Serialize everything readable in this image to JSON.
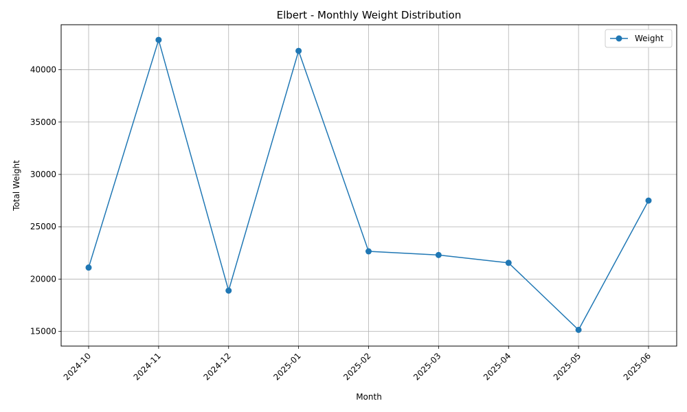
{
  "chart_data": {
    "type": "line",
    "title": "Elbert - Monthly Weight Distribution",
    "xlabel": "Month",
    "ylabel": "Total Weight",
    "categories": [
      "2024-10",
      "2024-11",
      "2024-12",
      "2025-01",
      "2025-02",
      "2025-03",
      "2025-04",
      "2025-05",
      "2025-06"
    ],
    "series": [
      {
        "name": "Weight",
        "values": [
          21100,
          42850,
          18900,
          41800,
          22650,
          22300,
          21550,
          15150,
          27500
        ],
        "color": "#1f77b4",
        "marker": "circle"
      }
    ],
    "yticks": [
      15000,
      20000,
      25000,
      30000,
      35000,
      40000
    ],
    "ylim": [
      13600,
      44300
    ],
    "grid": true,
    "legend_position": "top-right",
    "x_tick_rotation": 45
  }
}
